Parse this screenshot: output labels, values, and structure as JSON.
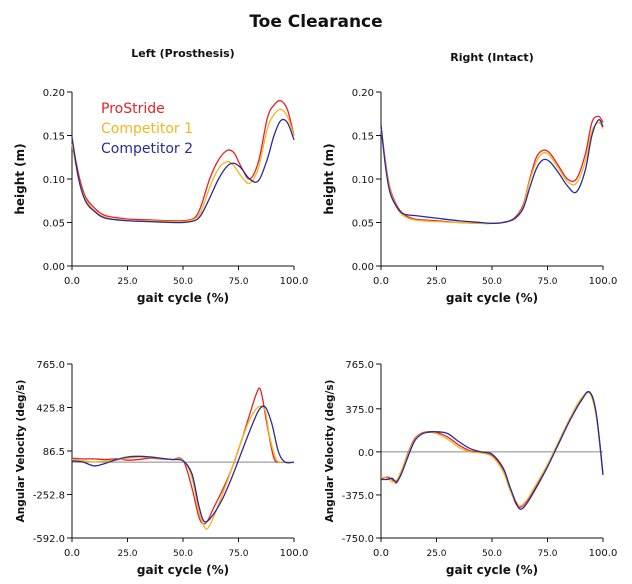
{
  "figure_title": "Toe Clearance",
  "colors": {
    "ProStride": "#e8202a",
    "Competitor 1": "#f2b619",
    "Competitor 2": "#2a2a9c",
    "zero_line": "#888888",
    "axis": "#111111"
  },
  "chart_data": [
    {
      "type": "line",
      "title": "Left (Prosthesis)",
      "xlabel": "gait cycle (%)",
      "ylabel": "height (m)",
      "xlim": [
        0,
        100
      ],
      "ylim": [
        0,
        0.2
      ],
      "xticks": [
        0,
        25,
        50,
        75,
        100
      ],
      "xtick_labels": [
        "0.0",
        "25.0",
        "50.0",
        "75.0",
        "100.0"
      ],
      "yticks": [
        0,
        0.05,
        0.1,
        0.15,
        0.2
      ],
      "ytick_labels": [
        "0.00",
        "0.05",
        "0.10",
        "0.15",
        "0.20"
      ],
      "zero_line": false,
      "legend": {
        "placement": "top-left",
        "entries": [
          "ProStride",
          "Competitor 1",
          "Competitor 2"
        ]
      },
      "series": [
        {
          "name": "ProStride",
          "x": [
            0,
            3,
            6,
            10,
            15,
            25,
            35,
            45,
            50,
            55,
            58,
            62,
            66,
            70,
            73,
            76,
            80,
            84,
            88,
            91,
            94,
            97,
            100
          ],
          "y": [
            0.145,
            0.105,
            0.08,
            0.067,
            0.058,
            0.054,
            0.053,
            0.052,
            0.052,
            0.055,
            0.068,
            0.1,
            0.122,
            0.133,
            0.13,
            0.115,
            0.1,
            0.12,
            0.17,
            0.185,
            0.19,
            0.18,
            0.15
          ]
        },
        {
          "name": "Competitor 1",
          "x": [
            0,
            3,
            6,
            10,
            15,
            25,
            35,
            45,
            50,
            55,
            58,
            62,
            66,
            70,
            73,
            76,
            80,
            84,
            88,
            91,
            94,
            97,
            100
          ],
          "y": [
            0.14,
            0.1,
            0.077,
            0.064,
            0.056,
            0.052,
            0.052,
            0.051,
            0.051,
            0.054,
            0.062,
            0.09,
            0.112,
            0.12,
            0.115,
            0.104,
            0.095,
            0.113,
            0.158,
            0.174,
            0.18,
            0.172,
            0.15
          ]
        },
        {
          "name": "Competitor 2",
          "x": [
            0,
            3,
            6,
            10,
            15,
            25,
            35,
            45,
            50,
            55,
            58,
            62,
            66,
            70,
            73,
            76,
            80,
            84,
            88,
            91,
            94,
            97,
            100
          ],
          "y": [
            0.148,
            0.1,
            0.075,
            0.063,
            0.055,
            0.052,
            0.051,
            0.05,
            0.05,
            0.052,
            0.058,
            0.078,
            0.1,
            0.115,
            0.118,
            0.113,
            0.1,
            0.098,
            0.123,
            0.15,
            0.167,
            0.165,
            0.145
          ]
        }
      ]
    },
    {
      "type": "line",
      "title": "Right (Intact)",
      "xlabel": "gait cycle (%)",
      "ylabel": "height (m)",
      "xlim": [
        0,
        100
      ],
      "ylim": [
        0,
        0.2
      ],
      "xticks": [
        0,
        25,
        50,
        75,
        100
      ],
      "xtick_labels": [
        "0.0",
        "25.0",
        "50.0",
        "75.0",
        "100.0"
      ],
      "yticks": [
        0,
        0.05,
        0.1,
        0.15,
        0.2
      ],
      "ytick_labels": [
        "0.00",
        "0.05",
        "0.10",
        "0.15",
        "0.20"
      ],
      "zero_line": false,
      "series": [
        {
          "name": "ProStride",
          "x": [
            0,
            2,
            4,
            7,
            10,
            15,
            25,
            35,
            45,
            50,
            55,
            60,
            64,
            67,
            70,
            73,
            76,
            80,
            84,
            88,
            92,
            95,
            98,
            100
          ],
          "y": [
            0.16,
            0.12,
            0.09,
            0.07,
            0.06,
            0.054,
            0.052,
            0.05,
            0.049,
            0.049,
            0.05,
            0.055,
            0.07,
            0.1,
            0.125,
            0.133,
            0.13,
            0.115,
            0.1,
            0.1,
            0.128,
            0.165,
            0.172,
            0.165
          ]
        },
        {
          "name": "Competitor 1",
          "x": [
            0,
            2,
            4,
            7,
            10,
            15,
            25,
            35,
            45,
            50,
            55,
            60,
            64,
            67,
            70,
            73,
            76,
            80,
            84,
            88,
            92,
            95,
            98,
            100
          ],
          "y": [
            0.158,
            0.118,
            0.088,
            0.068,
            0.058,
            0.053,
            0.051,
            0.05,
            0.049,
            0.049,
            0.05,
            0.054,
            0.068,
            0.098,
            0.12,
            0.13,
            0.127,
            0.112,
            0.097,
            0.095,
            0.12,
            0.155,
            0.165,
            0.158
          ]
        },
        {
          "name": "Competitor 2",
          "x": [
            0,
            2,
            4,
            7,
            10,
            15,
            25,
            35,
            45,
            50,
            55,
            60,
            64,
            67,
            70,
            73,
            76,
            80,
            84,
            88,
            92,
            95,
            98,
            100
          ],
          "y": [
            0.162,
            0.115,
            0.085,
            0.068,
            0.06,
            0.058,
            0.055,
            0.052,
            0.05,
            0.049,
            0.05,
            0.054,
            0.066,
            0.09,
            0.112,
            0.122,
            0.12,
            0.107,
            0.092,
            0.085,
            0.11,
            0.15,
            0.168,
            0.16
          ]
        }
      ]
    },
    {
      "type": "line",
      "title": "",
      "xlabel": "gait cycle (%)",
      "ylabel": "Angular Velocity (deg/s)",
      "xlim": [
        0,
        100
      ],
      "ylim": [
        -592,
        765
      ],
      "xticks": [
        0,
        25,
        50,
        75,
        100
      ],
      "xtick_labels": [
        "0.0",
        "25.0",
        "50.0",
        "75.0",
        "100.0"
      ],
      "yticks": [
        -592,
        -252.8,
        86.5,
        425.8,
        765
      ],
      "ytick_labels": [
        "-592.0",
        "-252.8",
        "86.5",
        "425.8",
        "765.0"
      ],
      "zero_line": true,
      "series": [
        {
          "name": "ProStride",
          "x": [
            0,
            5,
            10,
            15,
            20,
            25,
            30,
            35,
            40,
            45,
            50,
            54,
            57,
            59,
            61,
            64,
            68,
            72,
            76,
            80,
            83,
            85,
            88,
            91,
            94,
            100
          ],
          "y": [
            30,
            25,
            25,
            20,
            25,
            15,
            20,
            30,
            25,
            20,
            15,
            -200,
            -420,
            -480,
            -460,
            -350,
            -210,
            -50,
            150,
            370,
            530,
            560,
            280,
            30,
            0,
            0
          ]
        },
        {
          "name": "Competitor 1",
          "x": [
            0,
            5,
            10,
            15,
            20,
            25,
            30,
            35,
            40,
            45,
            50,
            54,
            57,
            59,
            61,
            64,
            68,
            72,
            76,
            80,
            84,
            87,
            89,
            92,
            95,
            100
          ],
          "y": [
            20,
            10,
            0,
            10,
            15,
            30,
            40,
            35,
            30,
            20,
            15,
            -120,
            -380,
            -480,
            -520,
            -420,
            -240,
            -50,
            150,
            330,
            430,
            400,
            200,
            20,
            0,
            0
          ]
        },
        {
          "name": "Competitor 2",
          "x": [
            0,
            5,
            10,
            15,
            20,
            25,
            30,
            35,
            40,
            45,
            50,
            54,
            57,
            59,
            61,
            64,
            68,
            72,
            76,
            80,
            84,
            87,
            90,
            93,
            96,
            100
          ],
          "y": [
            10,
            0,
            -30,
            -10,
            20,
            40,
            45,
            40,
            30,
            20,
            10,
            -90,
            -330,
            -450,
            -460,
            -400,
            -280,
            -120,
            60,
            240,
            400,
            430,
            300,
            80,
            0,
            0
          ]
        }
      ]
    },
    {
      "type": "line",
      "title": "",
      "xlabel": "gait cycle (%)",
      "ylabel": "Angular Velocity (deg/s)",
      "xlim": [
        0,
        100
      ],
      "ylim": [
        -750,
        765
      ],
      "xticks": [
        0,
        25,
        50,
        75,
        100
      ],
      "xtick_labels": [
        "0.0",
        "25.0",
        "50.0",
        "75.0",
        "100.0"
      ],
      "yticks": [
        -750,
        -375,
        0,
        375,
        765
      ],
      "ytick_labels": [
        "-750.0",
        "-375.0",
        "0.0",
        "375.0",
        "765.0"
      ],
      "zero_line": true,
      "series": [
        {
          "name": "ProStride",
          "x": [
            0,
            3,
            5,
            7,
            9,
            12,
            15,
            18,
            21,
            25,
            30,
            35,
            40,
            45,
            50,
            55,
            58,
            61,
            63,
            66,
            70,
            75,
            80,
            85,
            90,
            94,
            97,
            100
          ],
          "y": [
            -230,
            -220,
            -240,
            -270,
            -180,
            -20,
            110,
            160,
            175,
            170,
            130,
            60,
            10,
            0,
            -30,
            -150,
            -320,
            -460,
            -480,
            -420,
            -300,
            -120,
            80,
            280,
            450,
            520,
            320,
            -200
          ]
        },
        {
          "name": "Competitor 1",
          "x": [
            0,
            3,
            5,
            7,
            9,
            12,
            15,
            18,
            21,
            25,
            30,
            35,
            40,
            45,
            50,
            55,
            58,
            61,
            63,
            66,
            70,
            75,
            80,
            85,
            90,
            94,
            97,
            100
          ],
          "y": [
            -220,
            -230,
            -260,
            -250,
            -170,
            -30,
            100,
            155,
            170,
            160,
            110,
            40,
            0,
            -10,
            -40,
            -170,
            -330,
            -440,
            -470,
            -410,
            -280,
            -110,
            90,
            290,
            460,
            510,
            300,
            -200
          ]
        },
        {
          "name": "Competitor 2",
          "x": [
            0,
            3,
            5,
            7,
            9,
            12,
            15,
            18,
            21,
            25,
            30,
            35,
            40,
            45,
            50,
            55,
            58,
            61,
            63,
            66,
            70,
            75,
            80,
            85,
            90,
            94,
            97,
            100
          ],
          "y": [
            -240,
            -240,
            -230,
            -260,
            -200,
            -50,
            90,
            150,
            170,
            175,
            160,
            90,
            30,
            0,
            -20,
            -140,
            -300,
            -450,
            -500,
            -440,
            -310,
            -130,
            70,
            270,
            440,
            520,
            330,
            -200
          ]
        }
      ]
    }
  ]
}
